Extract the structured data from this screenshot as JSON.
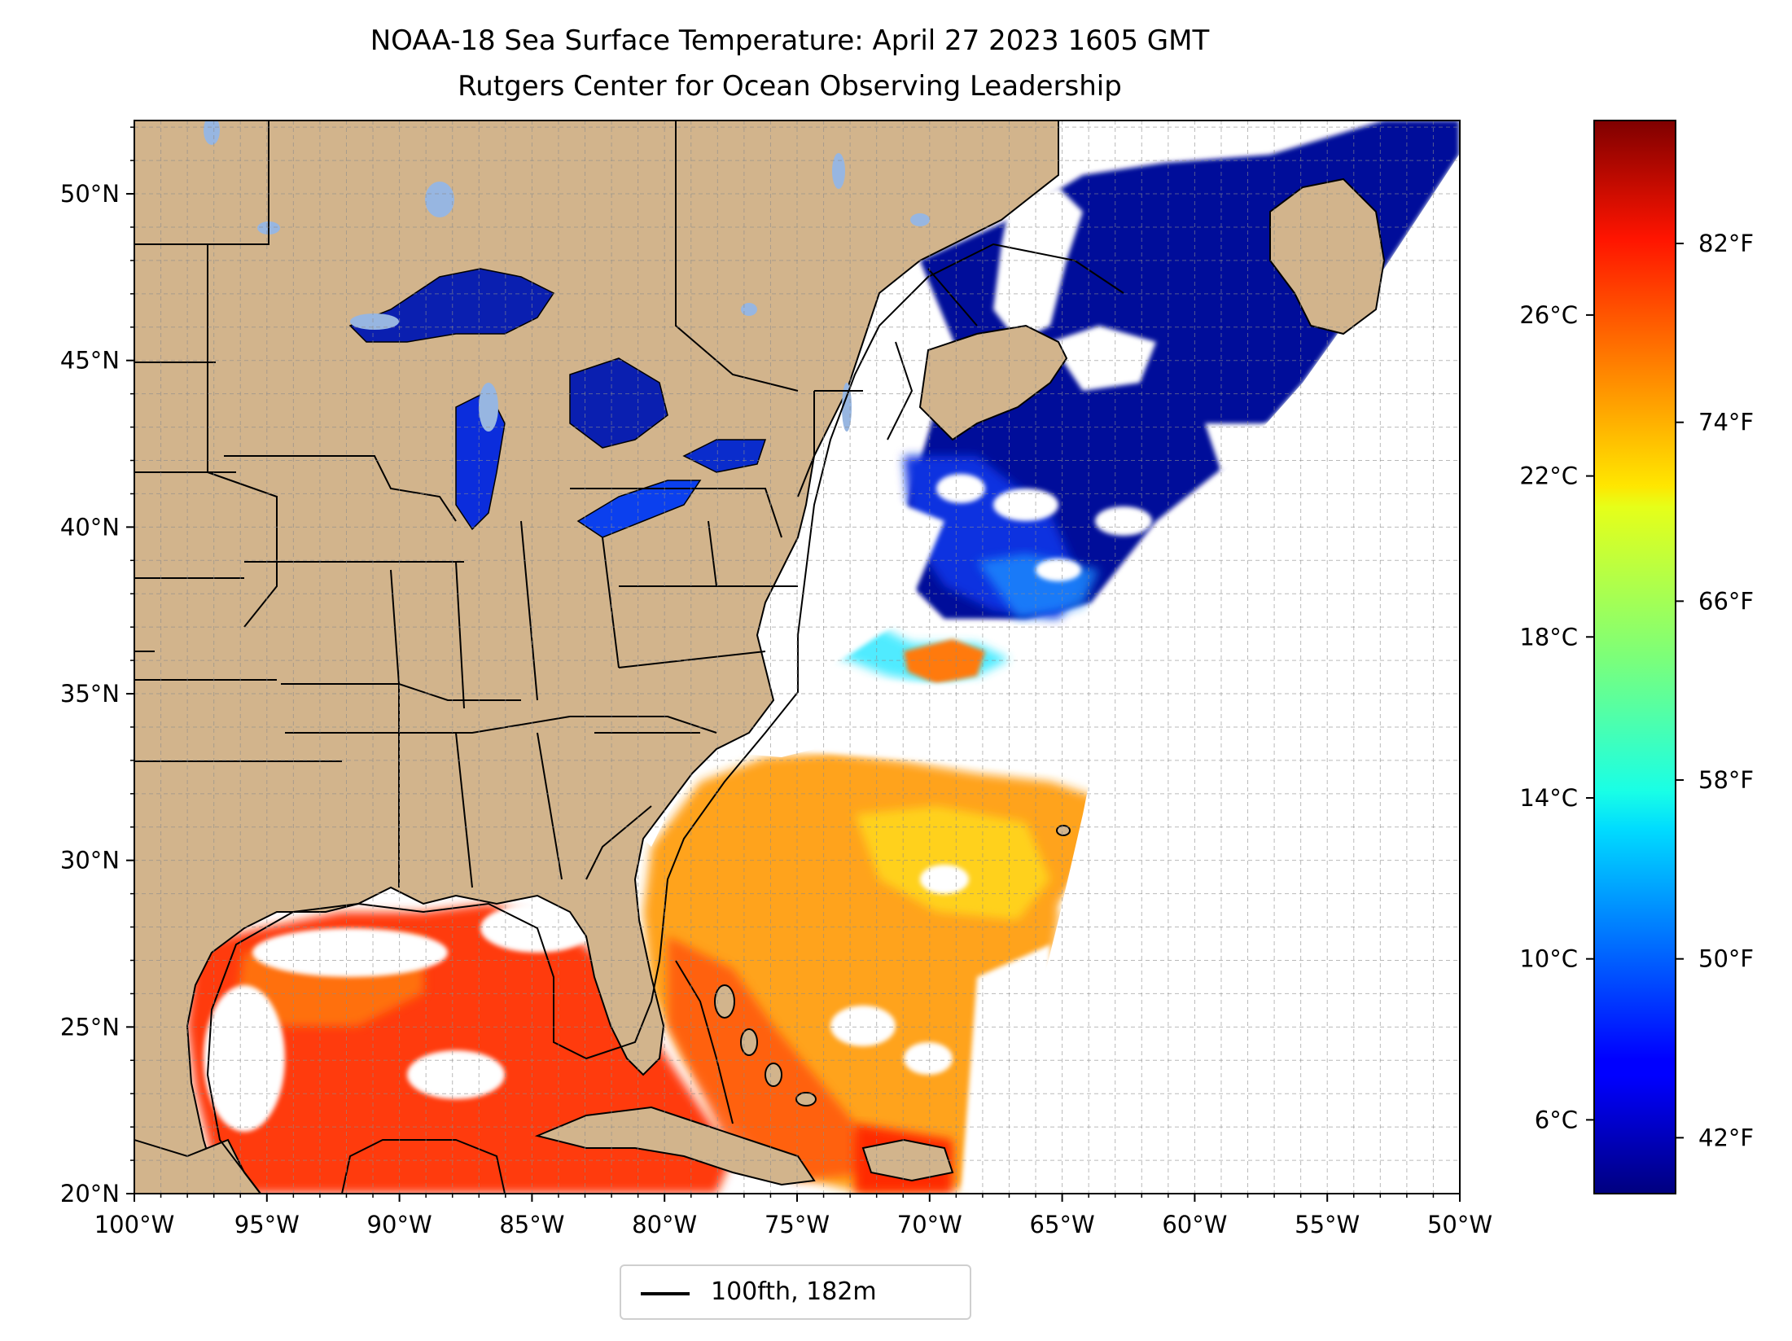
{
  "title": {
    "line1": "NOAA-18 Sea Surface Temperature: April 27 2023 1605 GMT",
    "line2": "Rutgers Center for Ocean Observing Leadership"
  },
  "map": {
    "lon_range": [
      -100,
      -50
    ],
    "lat_range": [
      20,
      52.2
    ],
    "lon_ticks": [
      "100°W",
      "95°W",
      "90°W",
      "85°W",
      "80°W",
      "75°W",
      "70°W",
      "65°W",
      "60°W",
      "55°W",
      "50°W"
    ],
    "lat_ticks": [
      "20°N",
      "25°N",
      "30°N",
      "35°N",
      "40°N",
      "45°N",
      "50°N"
    ],
    "grid": "dashed, 1 degree",
    "land_color": "#d2b48c",
    "lake_color": "#97b6e1",
    "no_data_color": "#ffffff"
  },
  "colorbar": {
    "colormap": "jet",
    "range_f": [
      39.5,
      87.5
    ],
    "fahrenheit_ticks": [
      "42°F",
      "50°F",
      "58°F",
      "66°F",
      "74°F",
      "82°F"
    ],
    "celsius_ticks": [
      "6°C",
      "10°C",
      "14°C",
      "18°C",
      "22°C",
      "26°C"
    ]
  },
  "legend": {
    "label": "100fth, 182m",
    "placement": "bottom-center"
  }
}
